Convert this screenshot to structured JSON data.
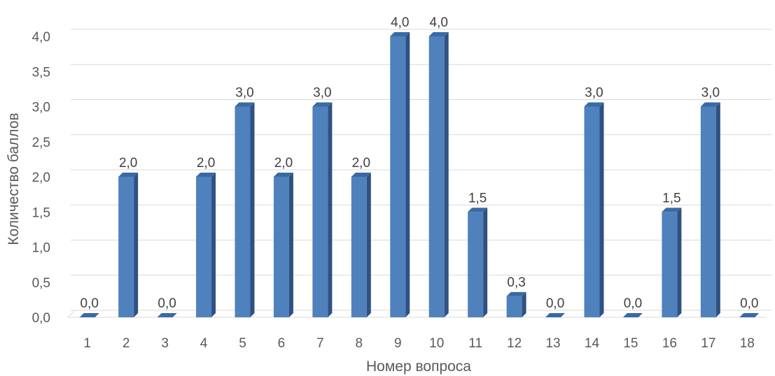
{
  "chart_data": {
    "type": "bar",
    "categories": [
      "1",
      "2",
      "3",
      "4",
      "5",
      "6",
      "7",
      "8",
      "9",
      "10",
      "11",
      "12",
      "13",
      "14",
      "15",
      "16",
      "17",
      "18"
    ],
    "values": [
      0.0,
      2.0,
      0.0,
      2.0,
      3.0,
      2.0,
      3.0,
      2.0,
      4.0,
      4.0,
      1.5,
      0.3,
      0.0,
      3.0,
      0.0,
      1.5,
      3.0,
      0.0
    ],
    "data_labels": [
      "0,0",
      "2,0",
      "0,0",
      "2,0",
      "3,0",
      "2,0",
      "3,0",
      "2,0",
      "4,0",
      "4,0",
      "1,5",
      "0,3",
      "0,0",
      "3,0",
      "0,0",
      "1,5",
      "3,0",
      "0,0"
    ],
    "yticks": [
      0,
      0.5,
      1.0,
      1.5,
      2.0,
      2.5,
      3.0,
      3.5,
      4.0
    ],
    "ytick_labels": [
      "0,0",
      "0,5",
      "1,0",
      "1,5",
      "2,0",
      "2,5",
      "3,0",
      "3,5",
      "4,0"
    ],
    "ylim": [
      0,
      4
    ],
    "xlabel": "Номер вопроса",
    "ylabel": "Количество баллов",
    "title": "",
    "grid": true,
    "legend": "none",
    "bar_color": "#4f81bd",
    "bar_side_color": "#2f5182",
    "bar_top_color": "#3a6aa3"
  }
}
